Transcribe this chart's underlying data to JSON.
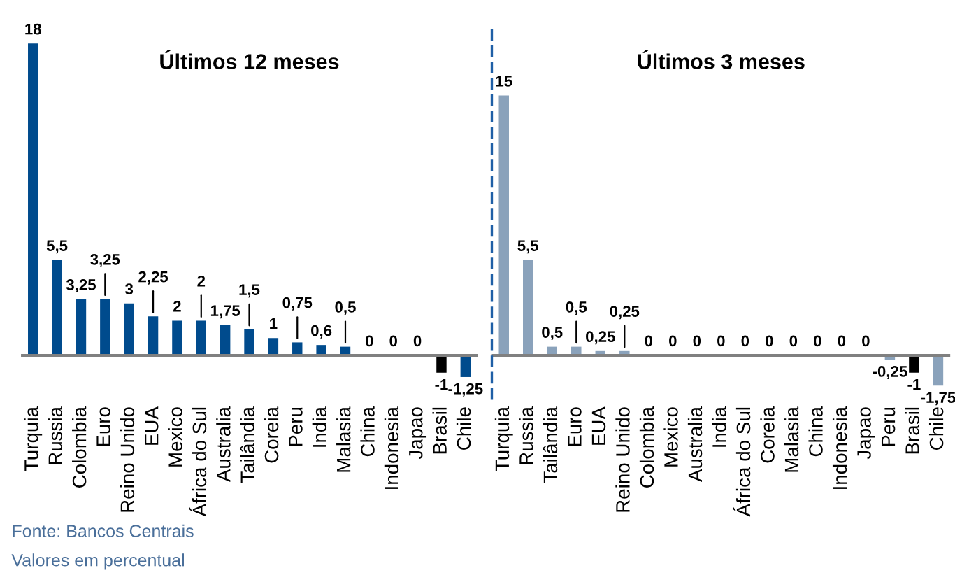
{
  "chart_data": [
    {
      "type": "bar",
      "title": "Últimos 12 meses",
      "categories": [
        "Turquia",
        "Russia",
        "Colombia",
        "Euro",
        "Reino Unido",
        "EUA",
        "Mexico",
        "África do Sul",
        "Australia",
        "Tailândia",
        "Coreia",
        "Peru",
        "India",
        "Malasia",
        "China",
        "Indonesia",
        "Japao",
        "Brasil",
        "Chile"
      ],
      "values": [
        18,
        5.5,
        3.25,
        3.25,
        3,
        2.25,
        2,
        2,
        1.75,
        1.5,
        1,
        0.75,
        0.6,
        0.5,
        0,
        0,
        0,
        -1,
        -1.25
      ],
      "value_labels": [
        "18",
        "5,5",
        "3,25",
        "3,25",
        "3",
        "2,25",
        "2",
        "2",
        "1,75",
        "1,5",
        "1",
        "0,75",
        "0,6",
        "0,5",
        "0",
        "0",
        "0",
        "-1",
        "-1,25"
      ],
      "colors": [
        "#004b8d",
        "#004b8d",
        "#004b8d",
        "#004b8d",
        "#004b8d",
        "#004b8d",
        "#004b8d",
        "#004b8d",
        "#004b8d",
        "#004b8d",
        "#004b8d",
        "#004b8d",
        "#004b8d",
        "#004b8d",
        "#004b8d",
        "#004b8d",
        "#004b8d",
        "#000000",
        "#004b8d"
      ],
      "ylim": [
        -2.5,
        19
      ],
      "tick_labels": "x",
      "grid": false,
      "ref_lines": [
        {
          "axis": "y",
          "value": 0,
          "color": "#808080"
        }
      ],
      "annotations": [
        "Fonte: Bancos Centrais",
        "Valores em percentual"
      ]
    },
    {
      "type": "bar",
      "title": "Últimos 3 meses",
      "categories": [
        "Turquia",
        "Russia",
        "Tailândia",
        "Euro",
        "EUA",
        "Reino Unido",
        "Colombia",
        "Mexico",
        "Australia",
        "India",
        "África do Sul",
        "Coreia",
        "Malasia",
        "China",
        "Indonesia",
        "Japao",
        "Peru",
        "Brasil",
        "Chile"
      ],
      "values": [
        15,
        5.5,
        0.5,
        0.5,
        0.25,
        0.25,
        0,
        0,
        0,
        0,
        0,
        0,
        0,
        0,
        0,
        0,
        -0.25,
        -1,
        -1.75
      ],
      "value_labels": [
        "15",
        "5,5",
        "0,5",
        "0,5",
        "0,25",
        "0,25",
        "0",
        "0",
        "0",
        "0",
        "0",
        "0",
        "0",
        "0",
        "0",
        "0",
        "-0,25",
        "-1",
        "-1,75"
      ],
      "colors": [
        "#8aa2bb",
        "#8aa2bb",
        "#8aa2bb",
        "#8aa2bb",
        "#8aa2bb",
        "#8aa2bb",
        "#8aa2bb",
        "#8aa2bb",
        "#8aa2bb",
        "#8aa2bb",
        "#8aa2bb",
        "#8aa2bb",
        "#8aa2bb",
        "#8aa2bb",
        "#8aa2bb",
        "#8aa2bb",
        "#8aa2bb",
        "#000000",
        "#8aa2bb"
      ],
      "ylim": [
        -2.5,
        19
      ],
      "tick_labels": "x",
      "grid": false,
      "ref_lines": [
        {
          "axis": "y",
          "value": 0,
          "color": "#808080"
        }
      ]
    }
  ]
}
